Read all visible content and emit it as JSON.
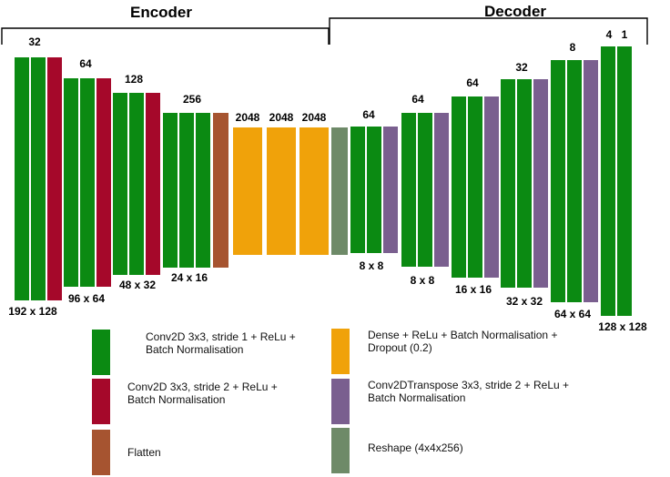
{
  "headers": {
    "encoder": "Encoder",
    "decoder": "Decoder"
  },
  "colors": {
    "conv_s1": "#0b8a12",
    "conv_s2": "#a5082a",
    "flatten": "#a65430",
    "dense": "#f0a20a",
    "convT": "#7a5f8f",
    "reshape": "#6e8a68"
  },
  "layers": [
    {
      "type": "conv_s1"
    },
    {
      "type": "conv_s1"
    },
    {
      "type": "conv_s2"
    },
    {
      "type": "conv_s1"
    },
    {
      "type": "conv_s1"
    },
    {
      "type": "conv_s2"
    },
    {
      "type": "conv_s1"
    },
    {
      "type": "conv_s1"
    },
    {
      "type": "conv_s2"
    },
    {
      "type": "conv_s1"
    },
    {
      "type": "conv_s1"
    },
    {
      "type": "conv_s1"
    },
    {
      "type": "flatten"
    },
    {
      "type": "dense"
    },
    {
      "type": "dense"
    },
    {
      "type": "dense"
    },
    {
      "type": "reshape"
    },
    {
      "type": "conv_s1"
    },
    {
      "type": "conv_s1"
    },
    {
      "type": "convT"
    },
    {
      "type": "conv_s1"
    },
    {
      "type": "conv_s1"
    },
    {
      "type": "convT"
    },
    {
      "type": "conv_s1"
    },
    {
      "type": "conv_s1"
    },
    {
      "type": "convT"
    },
    {
      "type": "conv_s1"
    },
    {
      "type": "conv_s1"
    },
    {
      "type": "convT"
    },
    {
      "type": "conv_s1"
    },
    {
      "type": "conv_s1"
    },
    {
      "type": "convT"
    },
    {
      "type": "conv_s1"
    },
    {
      "type": "conv_s1"
    }
  ],
  "channel_labels": [
    "32",
    "64",
    "128",
    "256",
    "2048",
    "2048",
    "2048",
    "64",
    "64",
    "64",
    "32",
    "8",
    "4",
    "1"
  ],
  "size_labels": [
    "192 x 128",
    "96 x 64",
    "48 x 32",
    "24 x 16",
    "8 x 8",
    "8 x 8",
    "16 x 16",
    "32 x 32",
    "64 x 64",
    "128 x 128"
  ],
  "legend": [
    {
      "type": "conv_s1",
      "text": "Conv2D 3x3, stride 1 + ReLu + Batch Normalisation"
    },
    {
      "type": "conv_s2",
      "text": "Conv2D 3x3, stride 2 + ReLu + Batch Normalisation"
    },
    {
      "type": "flatten",
      "text": "Flatten"
    },
    {
      "type": "dense",
      "text": "Dense + ReLu + Batch Normalisation + Dropout (0.2)"
    },
    {
      "type": "convT",
      "text": "Conv2DTranspose 3x3, stride 2 + ReLu + Batch Normalisation"
    },
    {
      "type": "reshape",
      "text": "Reshape (4x4x256)"
    }
  ]
}
